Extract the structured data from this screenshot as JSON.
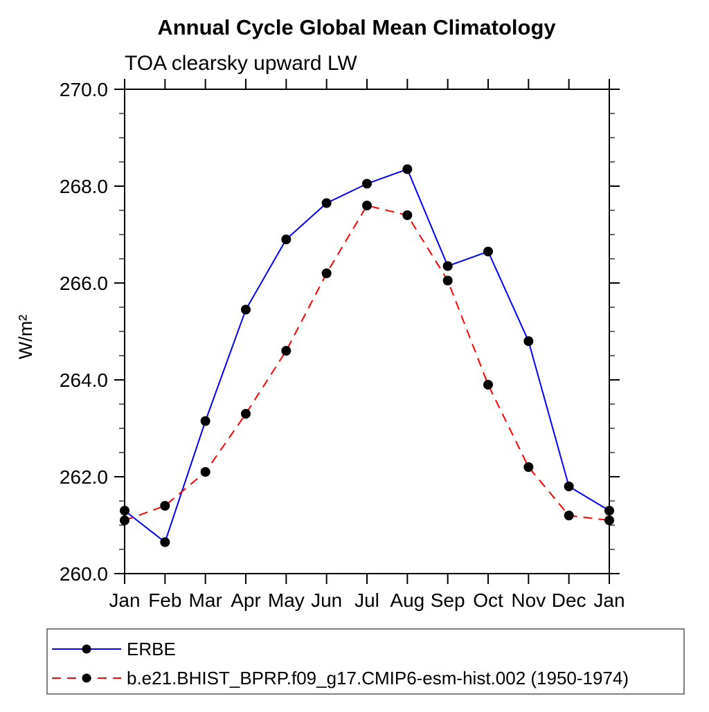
{
  "chart_data": {
    "type": "line",
    "title": "Annual Cycle Global Mean Climatology",
    "subtitle": "TOA clearsky upward LW",
    "ylabel": "W/m²",
    "ylim": [
      260.0,
      270.0
    ],
    "ytick_major_step": 2.0,
    "ytick_minor_step": 0.5,
    "ytick_labels": [
      "260.0",
      "262.0",
      "264.0",
      "266.0",
      "268.0",
      "270.0"
    ],
    "x_categories": [
      "Jan",
      "Feb",
      "Mar",
      "Apr",
      "May",
      "Jun",
      "Jul",
      "Aug",
      "Sep",
      "Oct",
      "Nov",
      "Dec",
      "Jan"
    ],
    "grid": false,
    "frame_color": "#000000",
    "legend": {
      "position": "bottom-left",
      "border_color": "#808080",
      "marker_color": "#000000"
    },
    "series": [
      {
        "name": "ERBE",
        "color": "#0000ff",
        "line_style": "solid",
        "marker": "filled-circle",
        "marker_color": "#000000",
        "values": [
          261.3,
          260.65,
          263.15,
          265.45,
          266.9,
          267.65,
          268.05,
          268.35,
          266.35,
          266.65,
          264.8,
          261.8,
          261.3
        ]
      },
      {
        "name": "b.e21.BHIST_BPRP.f09_g17.CMIP6-esm-hist.002 (1950-1974)",
        "color": "#ff0000",
        "line_style": "dashed",
        "marker": "filled-circle",
        "marker_color": "#000000",
        "values": [
          261.1,
          261.4,
          262.1,
          263.3,
          264.6,
          266.2,
          267.6,
          267.4,
          266.05,
          263.9,
          262.2,
          261.2,
          261.1
        ]
      }
    ]
  }
}
